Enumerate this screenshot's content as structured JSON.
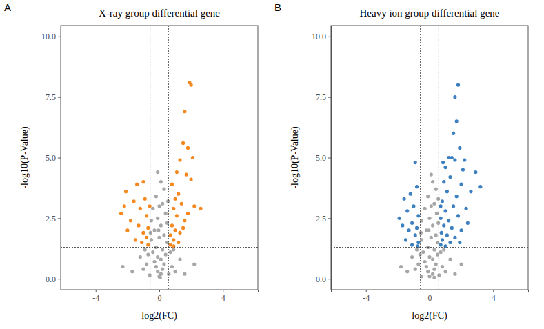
{
  "chart_data": [
    {
      "type": "scatter",
      "panel_label": "A",
      "title": "X-ray group differential gene",
      "x_label": "log2(FC)",
      "y_label": "-log10(P-Value)",
      "xlim": [
        -6.2,
        6.2
      ],
      "ylim": [
        -0.45,
        10.45
      ],
      "xticks": [
        -4,
        0,
        4
      ],
      "yticks": [
        {
          "value": 0,
          "label": "0.0"
        },
        {
          "value": 2.5,
          "label": "2.5"
        },
        {
          "value": 5,
          "label": "5.0"
        },
        {
          "value": 7.5,
          "label": "7.5"
        },
        {
          "value": 10,
          "label": "10.0"
        }
      ],
      "reference_lines": {
        "x": [
          -0.58,
          0.58
        ],
        "y": [
          1.3
        ]
      },
      "marker": "circle",
      "series": [
        {
          "color": "#a6a6a6",
          "x": [
            0,
            0.1,
            -0.1,
            0.2,
            -0.2,
            0.3,
            -0.3,
            0.1,
            -0.1,
            0.4,
            -0.4,
            0.2,
            -0.2,
            0.5,
            -0.5,
            0.3,
            -0.3,
            0.1,
            -0.1,
            0.4,
            -0.4,
            0.2,
            -0.2,
            0.3,
            0.1,
            -0.1,
            0.5,
            -0.5,
            0.55,
            -0.55,
            0.8,
            -0.8,
            1.0,
            -1.0,
            1.3,
            -1.2,
            0.7,
            -0.7,
            1.6,
            -1.7,
            2.2,
            -2.3,
            0.9,
            -0.9,
            0.6,
            -0.6,
            0,
            0,
            0.05,
            -0.05
          ],
          "values": [
            0.1,
            0.2,
            0.3,
            0.4,
            0.5,
            0.6,
            0.7,
            0.8,
            0.9,
            1.0,
            1.1,
            1.2,
            1.3,
            1.5,
            1.6,
            1.8,
            2.0,
            2.2,
            2.5,
            2.7,
            2.9,
            3.1,
            3.4,
            3.7,
            4.0,
            4.4,
            2.3,
            2.4,
            3.2,
            1.9,
            0.5,
            0.6,
            0.3,
            0.4,
            0.8,
            0.9,
            1.1,
            1.0,
            0.2,
            0.3,
            0.6,
            0.5,
            1.2,
            1.2,
            0.2,
            0.15,
            1.7,
            3.0,
            0.05,
            2.0
          ]
        },
        {
          "color": "#f5881f",
          "x": [
            1.9,
            2.0,
            1.6,
            1.5,
            1.8,
            2.1,
            1.3,
            1.7,
            2.0,
            2.6,
            1.2,
            1.0,
            1.4,
            0.9,
            1.1,
            1.6,
            0.8,
            1.0,
            1.3,
            0.7,
            0.9,
            1.2,
            0.7,
            1.5,
            2.2,
            0.8,
            1.1,
            0.9,
            1.8,
            -1.4,
            -1.0,
            -2.1,
            -0.9,
            -1.6,
            -2.4,
            -1.2,
            -0.8,
            -1.8,
            -1.3,
            -0.7,
            -1.0,
            -2.0,
            -0.8,
            -1.5,
            -0.7,
            -1.1,
            -2.2,
            -0.6
          ],
          "values": [
            8.1,
            8.0,
            6.9,
            5.6,
            5.4,
            5.0,
            4.9,
            4.3,
            4.1,
            2.9,
            3.5,
            3.3,
            3.1,
            2.9,
            2.6,
            2.4,
            2.2,
            2.0,
            1.9,
            1.8,
            1.6,
            1.5,
            1.4,
            2.1,
            3.0,
            3.9,
            4.4,
            1.35,
            2.7,
            3.9,
            4.0,
            3.6,
            3.3,
            3.2,
            2.7,
            2.9,
            2.6,
            2.4,
            2.2,
            2.1,
            1.9,
            2.0,
            1.7,
            1.6,
            1.4,
            1.5,
            3.0,
            3.0
          ]
        }
      ]
    },
    {
      "type": "scatter",
      "panel_label": "B",
      "title": "Heavy ion group differential gene",
      "x_label": "log2(FC)",
      "y_label": "-log10(P-Value)",
      "xlim": [
        -6.2,
        6.2
      ],
      "ylim": [
        -0.45,
        10.45
      ],
      "xticks": [
        -4,
        0,
        4
      ],
      "yticks": [
        {
          "value": 0,
          "label": "0.0"
        },
        {
          "value": 2.5,
          "label": "2.5"
        },
        {
          "value": 5,
          "label": "5.0"
        },
        {
          "value": 7.5,
          "label": "7.5"
        },
        {
          "value": 10,
          "label": "10.0"
        }
      ],
      "reference_lines": {
        "x": [
          -0.58,
          0.58
        ],
        "y": [
          1.3
        ]
      },
      "marker": "circle",
      "series": [
        {
          "color": "#a6a6a6",
          "x": [
            0,
            0.2,
            -0.1,
            0.3,
            -0.2,
            0.4,
            -0.3,
            0.2,
            0,
            0.5,
            -0.4,
            0.3,
            -0.1,
            0.5,
            -0.5,
            0.4,
            -0.2,
            0.2,
            0,
            0.45,
            -0.3,
            0.3,
            -0.1,
            0.4,
            0.2,
            0.1,
            0.55,
            -0.5,
            0.55,
            -0.55,
            0.8,
            -0.7,
            1.0,
            -0.9,
            1.3,
            -1.1,
            0.7,
            -0.6,
            1.6,
            -1.4,
            2.0,
            -1.8,
            0.9,
            -0.8,
            0.6,
            -0.5,
            0.1,
            0.1,
            0.3,
            -0.05
          ],
          "values": [
            0.1,
            0.2,
            0.3,
            0.4,
            0.5,
            0.6,
            0.7,
            0.8,
            0.9,
            1.0,
            1.1,
            1.2,
            1.3,
            1.5,
            1.6,
            1.8,
            2.0,
            2.2,
            2.5,
            2.7,
            2.9,
            3.1,
            3.4,
            3.7,
            4.0,
            4.3,
            2.3,
            2.4,
            3.3,
            1.9,
            0.5,
            0.6,
            0.3,
            0.4,
            0.8,
            0.9,
            1.1,
            1.0,
            0.2,
            0.3,
            0.6,
            0.5,
            1.2,
            1.2,
            0.15,
            0.1,
            1.7,
            3.0,
            0.05,
            2.0
          ]
        },
        {
          "color": "#3d80c0",
          "x": [
            1.8,
            1.6,
            1.7,
            1.5,
            1.9,
            1.2,
            1.4,
            1.6,
            2.1,
            1.0,
            2.9,
            3.2,
            2.6,
            1.3,
            0.9,
            2.0,
            1.1,
            1.7,
            0.8,
            1.5,
            2.3,
            1.0,
            1.8,
            0.7,
            1.2,
            2.4,
            0.9,
            1.4,
            0.75,
            1.1,
            1.6,
            0.8,
            1.3,
            0.7,
            2.0,
            1.0,
            2.2,
            0.85,
            1.9,
            0.7,
            -0.9,
            -1.6,
            -1.2,
            -0.8,
            -1.0,
            -1.4,
            -0.7,
            -1.9,
            -1.1,
            -0.8,
            -1.3,
            -0.9,
            -1.5,
            -0.7,
            -1.1,
            -0.75,
            -1.7
          ],
          "values": [
            8.0,
            7.5,
            6.5,
            6.0,
            5.4,
            5.0,
            5.0,
            4.9,
            4.5,
            4.6,
            4.4,
            3.8,
            3.6,
            4.2,
            4.0,
            3.9,
            3.6,
            3.4,
            3.2,
            3.0,
            2.9,
            2.8,
            2.6,
            2.5,
            2.4,
            2.3,
            2.2,
            2.1,
            1.9,
            1.8,
            1.7,
            1.6,
            1.5,
            1.4,
            2.0,
            1.35,
            4.9,
            4.8,
            1.5,
            3.0,
            4.8,
            3.3,
            3.5,
            3.8,
            3.0,
            2.8,
            2.6,
            2.5,
            2.3,
            2.1,
            2.0,
            1.8,
            1.6,
            1.5,
            1.4,
            1.35,
            2.2
          ]
        }
      ]
    }
  ]
}
